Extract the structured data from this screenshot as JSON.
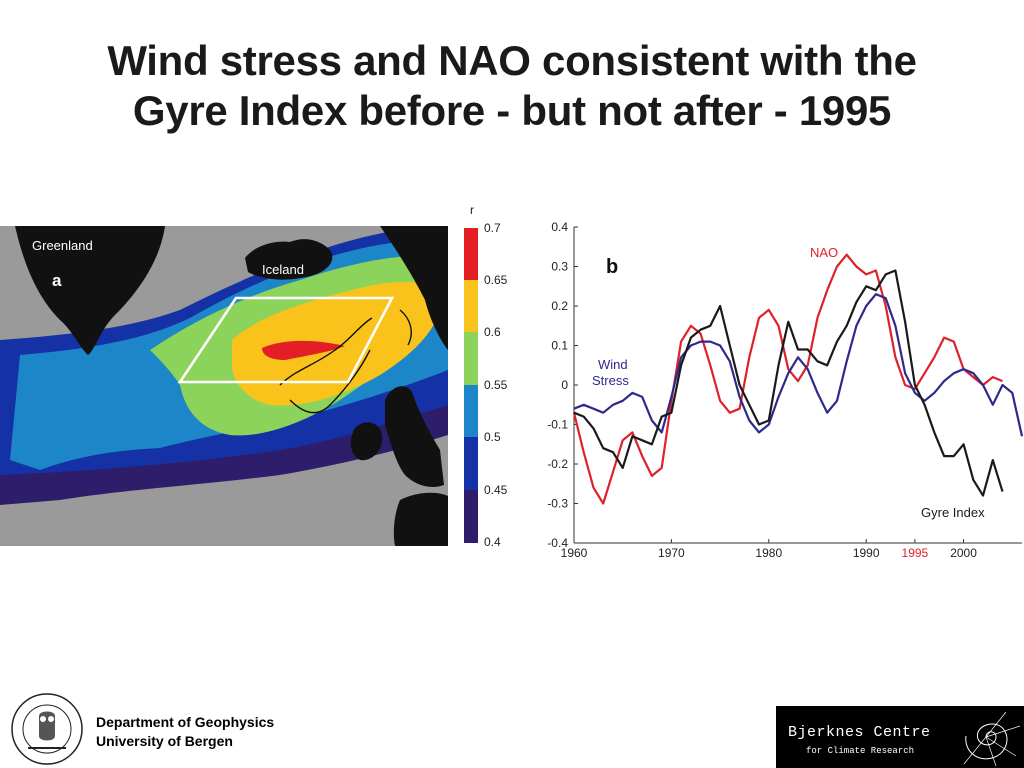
{
  "slide": {
    "title_line1": "Wind stress and NAO consistent with the",
    "title_line2": "Gyre Index before - but not after - 1995"
  },
  "map_panel": {
    "panel_letter": "a",
    "labels": {
      "greenland": "Greenland",
      "iceland": "Iceland"
    },
    "colorbar": {
      "title": "r",
      "ticks": [
        "0.7",
        "0.65",
        "0.6",
        "0.55",
        "0.5",
        "0.45",
        "0.4"
      ],
      "colors": [
        "#e31e24",
        "#f9c31b",
        "#8bd35a",
        "#1d86c9",
        "#1432a6",
        "#2e1d6b"
      ]
    },
    "colors": {
      "ocean": "#9a9a9a",
      "land": "#111111",
      "box": "#ffffff"
    }
  },
  "chart_data": {
    "type": "line",
    "panel_letter": "b",
    "x": [
      1960,
      1961,
      1962,
      1963,
      1964,
      1965,
      1966,
      1967,
      1968,
      1969,
      1970,
      1971,
      1972,
      1973,
      1974,
      1975,
      1976,
      1977,
      1978,
      1979,
      1980,
      1981,
      1982,
      1983,
      1984,
      1985,
      1986,
      1987,
      1988,
      1989,
      1990,
      1991,
      1992,
      1993,
      1994,
      1995,
      1996,
      1997,
      1998,
      1999,
      2000,
      2001,
      2002,
      2003,
      2004,
      2005,
      2006
    ],
    "series": [
      {
        "name": "NAO",
        "color": "#e0202a",
        "values": [
          -0.07,
          -0.17,
          -0.26,
          -0.3,
          -0.22,
          -0.14,
          -0.12,
          -0.18,
          -0.23,
          -0.21,
          -0.04,
          0.11,
          0.15,
          0.13,
          0.05,
          -0.04,
          -0.07,
          -0.06,
          0.07,
          0.17,
          0.19,
          0.15,
          0.04,
          0.01,
          0.05,
          0.17,
          0.24,
          0.3,
          0.33,
          0.3,
          0.28,
          0.29,
          0.2,
          0.07,
          0.0,
          -0.01,
          0.03,
          0.07,
          0.12,
          0.11,
          0.04,
          0.02,
          0.0,
          0.02,
          0.01,
          null,
          null
        ]
      },
      {
        "name": "Wind Stress",
        "color": "#2e2a8a",
        "values": [
          -0.06,
          -0.05,
          -0.06,
          -0.07,
          -0.05,
          -0.04,
          -0.02,
          -0.03,
          -0.09,
          -0.12,
          -0.03,
          0.07,
          0.1,
          0.11,
          0.11,
          0.1,
          0.06,
          -0.03,
          -0.09,
          -0.12,
          -0.1,
          -0.03,
          0.03,
          0.07,
          0.04,
          -0.02,
          -0.07,
          -0.04,
          0.06,
          0.15,
          0.2,
          0.23,
          0.22,
          0.15,
          0.03,
          -0.02,
          -0.04,
          -0.02,
          0.01,
          0.03,
          0.04,
          0.03,
          0.0,
          -0.05,
          0.0,
          -0.02,
          -0.13
        ]
      },
      {
        "name": "Gyre Index",
        "color": "#1a1a1a",
        "values": [
          -0.07,
          -0.08,
          -0.11,
          -0.16,
          -0.17,
          -0.21,
          -0.13,
          -0.14,
          -0.15,
          -0.08,
          -0.07,
          0.05,
          0.12,
          0.14,
          0.15,
          0.2,
          0.1,
          0.0,
          -0.05,
          -0.1,
          -0.09,
          0.05,
          0.16,
          0.09,
          0.09,
          0.06,
          0.05,
          0.11,
          0.15,
          0.21,
          0.25,
          0.24,
          0.28,
          0.29,
          0.16,
          0.0,
          -0.05,
          -0.12,
          -0.18,
          -0.18,
          -0.15,
          -0.24,
          -0.28,
          -0.19,
          -0.27,
          null,
          null
        ]
      }
    ],
    "xticks": [
      "1960",
      "1970",
      "1980",
      "1990",
      "1995",
      "2000"
    ],
    "yticks": [
      "0.4",
      "0.3",
      "0.2",
      "0.1",
      "0",
      "-0.1",
      "-0.2",
      "-0.3",
      "-0.4"
    ],
    "highlight_tick": {
      "label": "1995",
      "color": "#e0202a"
    },
    "xlim": [
      1960,
      2006
    ],
    "ylim": [
      -0.4,
      0.4
    ],
    "xlabel": "",
    "ylabel": "",
    "grid": false
  },
  "footer": {
    "line1": "Department of Geophysics",
    "line2": "University of Bergen",
    "logo_text": "Bjerknes Centre",
    "logo_subtext": "for Climate Research"
  }
}
